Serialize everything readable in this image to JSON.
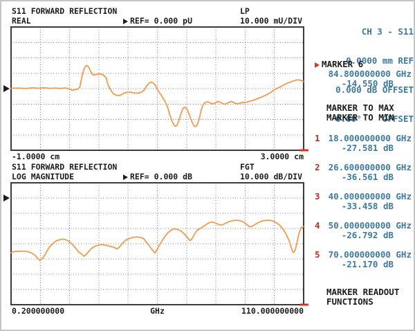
{
  "colors": {
    "blue": "#3e7a9e",
    "red_arrow": "#e2301a",
    "red_number": "#b23327",
    "trace_orange": "#f29a4e",
    "ink": "#1c1c1c",
    "grid": "#7e7e7e",
    "plot_border": "#3a3a3a"
  },
  "plots": [
    {
      "title": "S11 FORWARD REFLECTION",
      "format": "REAL",
      "ref_label": "REF= 0.000 pU",
      "mode": "LP",
      "scale": "10.000 mU/DIV",
      "axis_left": "-1.0000 cm",
      "axis_right": "3.0000 cm"
    },
    {
      "title": "S11 FORWARD REFLECTION",
      "format": "LOG MAGNITUDE",
      "ref_label": "REF= 0.000 dB",
      "mode": "FGT",
      "scale": "10.000 dB/DIV",
      "axis_left": "0.200000000",
      "axis_center": "GHz",
      "axis_right": "110.000000000"
    }
  ],
  "sidebar": {
    "channel": {
      "title": "CH 3 - S11",
      "lines": [
        "0.0000 mm REF",
        "0.000 dB OFFSET",
        "0.00°    OFFSET"
      ]
    },
    "active_marker": {
      "label": "MARKER 6",
      "freq": "84.800000000 GHz",
      "value": "-14.550 dB"
    },
    "menu": [
      "MARKER TO MAX",
      "MARKER TO MIN"
    ],
    "markers": [
      {
        "n": "1",
        "freq": "18.000000000 GHz",
        "value": "-27.581 dB"
      },
      {
        "n": "2",
        "freq": "26.600000000 GHz",
        "value": "-36.561 dB"
      },
      {
        "n": "3",
        "freq": "40.000000000 GHz",
        "value": "-33.458 dB"
      },
      {
        "n": "4",
        "freq": "50.000000000 GHz",
        "value": "-26.792 dB"
      },
      {
        "n": "5",
        "freq": "70.000000000 GHz",
        "value": "-21.170 dB"
      }
    ],
    "footer": [
      "MARKER READOUT",
      "FUNCTIONS"
    ]
  },
  "chart_data": [
    {
      "type": "line",
      "title": "S11 FORWARD REFLECTION - REAL",
      "xlabel": "cm",
      "ylabel": "mU",
      "x_range": [
        -1.0,
        3.0
      ],
      "ref_value": 0.0,
      "units_per_div": 10,
      "divisions_y": 8,
      "divisions_x": 10,
      "ref_div_from_top": 4,
      "grid": "dotted",
      "legend": false,
      "series": [
        {
          "name": "S11 real (mU vs cm)",
          "points": [
            [
              -1.0,
              0.22
            ],
            [
              -0.9,
              0.36
            ],
            [
              -0.8,
              0.09
            ],
            [
              -0.71,
              0.54
            ],
            [
              -0.61,
              0.22
            ],
            [
              -0.55,
              0.63
            ],
            [
              -0.47,
              0.18
            ],
            [
              -0.4,
              0.36
            ],
            [
              -0.33,
              0.09
            ],
            [
              -0.26,
              0.45
            ],
            [
              -0.21,
              -0.09
            ],
            [
              -0.16,
              -1.12
            ],
            [
              -0.12,
              -0.54
            ],
            [
              -0.09,
              -0.36
            ],
            [
              -0.06,
              0.9
            ],
            [
              -0.05,
              3.6
            ],
            [
              -0.03,
              8.09
            ],
            [
              0.0,
              13.26
            ],
            [
              0.03,
              15.06
            ],
            [
              0.05,
              14.61
            ],
            [
              0.07,
              13.03
            ],
            [
              0.09,
              11.01
            ],
            [
              0.11,
              9.44
            ],
            [
              0.13,
              8.76
            ],
            [
              0.15,
              8.99
            ],
            [
              0.18,
              9.35
            ],
            [
              0.21,
              9.53
            ],
            [
              0.24,
              9.21
            ],
            [
              0.27,
              8.54
            ],
            [
              0.3,
              6.97
            ],
            [
              0.32,
              3.15
            ],
            [
              0.36,
              -0.9
            ],
            [
              0.4,
              -3.37
            ],
            [
              0.44,
              -4.27
            ],
            [
              0.48,
              -4.49
            ],
            [
              0.51,
              -3.82
            ],
            [
              0.55,
              -2.83
            ],
            [
              0.59,
              -2.38
            ],
            [
              0.63,
              -2.25
            ],
            [
              0.66,
              -2.7
            ],
            [
              0.7,
              -2.92
            ],
            [
              0.74,
              -2.83
            ],
            [
              0.78,
              -2.38
            ],
            [
              0.82,
              -0.9
            ],
            [
              0.85,
              1.57
            ],
            [
              0.89,
              3.69
            ],
            [
              0.92,
              4.27
            ],
            [
              0.95,
              3.37
            ],
            [
              0.98,
              1.57
            ],
            [
              1.0,
              -0.67
            ],
            [
              1.03,
              -2.7
            ],
            [
              1.06,
              -4.72
            ],
            [
              1.1,
              -7.87
            ],
            [
              1.14,
              -11.91
            ],
            [
              1.17,
              -17.08
            ],
            [
              1.2,
              -21.12
            ],
            [
              1.23,
              -23.82
            ],
            [
              1.25,
              -24.49
            ],
            [
              1.27,
              -23.6
            ],
            [
              1.3,
              -19.78
            ],
            [
              1.33,
              -15.28
            ],
            [
              1.35,
              -12.81
            ],
            [
              1.38,
              -12.13
            ],
            [
              1.41,
              -13.71
            ],
            [
              1.44,
              -17.3
            ],
            [
              1.47,
              -21.35
            ],
            [
              1.5,
              -24.04
            ],
            [
              1.52,
              -24.72
            ],
            [
              1.54,
              -24.04
            ],
            [
              1.56,
              -21.57
            ],
            [
              1.58,
              -17.98
            ],
            [
              1.6,
              -13.93
            ],
            [
              1.62,
              -10.79
            ],
            [
              1.64,
              -9.44
            ],
            [
              1.67,
              -8.67
            ],
            [
              1.69,
              -8.54
            ],
            [
              1.72,
              -9.21
            ],
            [
              1.75,
              -9.89
            ],
            [
              1.78,
              -9.53
            ],
            [
              1.81,
              -8.67
            ],
            [
              1.84,
              -8.45
            ],
            [
              1.87,
              -9.08
            ],
            [
              1.9,
              -9.89
            ],
            [
              1.93,
              -10.11
            ],
            [
              1.96,
              -9.35
            ],
            [
              1.99,
              -8.63
            ],
            [
              2.02,
              -8.45
            ],
            [
              2.04,
              -8.99
            ],
            [
              2.07,
              -9.66
            ],
            [
              2.1,
              -9.89
            ],
            [
              2.13,
              -9.44
            ],
            [
              2.17,
              -8.9
            ],
            [
              2.21,
              -8.9
            ],
            [
              2.24,
              -8.54
            ],
            [
              2.28,
              -8.0
            ],
            [
              2.32,
              -7.42
            ],
            [
              2.36,
              -6.74
            ],
            [
              2.39,
              -6.07
            ],
            [
              2.43,
              -5.39
            ],
            [
              2.47,
              -4.49
            ],
            [
              2.51,
              -3.51
            ],
            [
              2.55,
              -2.47
            ],
            [
              2.58,
              -1.35
            ],
            [
              2.62,
              -0.22
            ],
            [
              2.66,
              0.67
            ],
            [
              2.7,
              1.57
            ],
            [
              2.73,
              2.47
            ],
            [
              2.77,
              3.37
            ],
            [
              2.81,
              4.13
            ],
            [
              2.85,
              4.81
            ],
            [
              2.89,
              5.39
            ],
            [
              2.91,
              5.71
            ],
            [
              2.94,
              5.62
            ],
            [
              2.97,
              5.17
            ],
            [
              3.0,
              4.49
            ]
          ]
        }
      ]
    },
    {
      "type": "line",
      "title": "S11 FORWARD REFLECTION - LOG MAGNITUDE",
      "xlabel": "GHz",
      "ylabel": "dB",
      "x_range": [
        0.2,
        110.0
      ],
      "ref_value": 0.0,
      "units_per_div": 10,
      "divisions_y": 8,
      "divisions_x": 10,
      "ref_div_from_top": 1,
      "grid": "dotted",
      "legend": false,
      "series": [
        {
          "name": "S11 log magnitude (dB vs GHz)",
          "points": [
            [
              0.2,
              -35.9
            ],
            [
              1.2,
              -35.2
            ],
            [
              2.8,
              -34.9
            ],
            [
              4.4,
              -34.8
            ],
            [
              5.9,
              -35.0
            ],
            [
              7.5,
              -35.7
            ],
            [
              9.0,
              -37.3
            ],
            [
              10.1,
              -39.3
            ],
            [
              11.1,
              -41.1
            ],
            [
              12.1,
              -39.5
            ],
            [
              13.2,
              -36.4
            ],
            [
              14.2,
              -33.2
            ],
            [
              15.5,
              -30.5
            ],
            [
              16.8,
              -28.4
            ],
            [
              18.0,
              -27.58
            ],
            [
              19.4,
              -26.9
            ],
            [
              20.7,
              -27.3
            ],
            [
              22.0,
              -28.6
            ],
            [
              23.3,
              -30.7
            ],
            [
              24.6,
              -33.2
            ],
            [
              25.6,
              -35.5
            ],
            [
              26.6,
              -36.56
            ],
            [
              27.5,
              -38.2
            ],
            [
              28.2,
              -37.3
            ],
            [
              29.3,
              -35.2
            ],
            [
              30.3,
              -33.2
            ],
            [
              31.6,
              -31.7
            ],
            [
              32.9,
              -31.0
            ],
            [
              34.2,
              -30.6
            ],
            [
              35.5,
              -30.9
            ],
            [
              37.1,
              -31.6
            ],
            [
              38.6,
              -32.2
            ],
            [
              40.0,
              -33.46
            ],
            [
              41.0,
              -32.0
            ],
            [
              41.7,
              -30.2
            ],
            [
              43.3,
              -27.5
            ],
            [
              44.9,
              -26.4
            ],
            [
              46.4,
              -25.7
            ],
            [
              47.7,
              -25.5
            ],
            [
              49.3,
              -26.2
            ],
            [
              50.0,
              -26.79
            ],
            [
              50.6,
              -28.2
            ],
            [
              51.9,
              -30.9
            ],
            [
              53.2,
              -34.1
            ],
            [
              54.2,
              -36.1
            ],
            [
              55.2,
              -33.2
            ],
            [
              56.5,
              -29.1
            ],
            [
              57.8,
              -25.5
            ],
            [
              59.1,
              -22.7
            ],
            [
              60.4,
              -20.9
            ],
            [
              61.5,
              -20.2
            ],
            [
              62.8,
              -20.7
            ],
            [
              64.1,
              -21.8
            ],
            [
              65.4,
              -23.9
            ],
            [
              66.4,
              -25.9
            ],
            [
              67.4,
              -28.0
            ],
            [
              68.2,
              -26.5
            ],
            [
              69.0,
              -23.8
            ],
            [
              70.0,
              -21.17
            ],
            [
              71.2,
              -19.9
            ],
            [
              72.4,
              -18.6
            ],
            [
              73.6,
              -17.2
            ],
            [
              74.6,
              -16.1
            ],
            [
              75.5,
              -15.7
            ],
            [
              76.5,
              -16.1
            ],
            [
              78.6,
              -17.7
            ],
            [
              79.6,
              -17.5
            ],
            [
              80.9,
              -16.4
            ],
            [
              82.2,
              -15.3
            ],
            [
              83.5,
              -14.8
            ],
            [
              84.8,
              -14.55
            ],
            [
              86.1,
              -14.9
            ],
            [
              87.4,
              -15.6
            ],
            [
              88.7,
              -17.4
            ],
            [
              89.7,
              -18.9
            ],
            [
              90.8,
              -18.4
            ],
            [
              91.8,
              -17.3
            ],
            [
              93.1,
              -16.0
            ],
            [
              94.4,
              -15.1
            ],
            [
              96.0,
              -14.6
            ],
            [
              97.3,
              -14.7
            ],
            [
              98.6,
              -15.2
            ],
            [
              99.9,
              -16.4
            ],
            [
              101.2,
              -18.2
            ],
            [
              102.5,
              -20.9
            ],
            [
              103.5,
              -24.1
            ],
            [
              104.6,
              -28.2
            ],
            [
              105.3,
              -32.3
            ],
            [
              105.9,
              -35.4
            ],
            [
              106.4,
              -35.7
            ],
            [
              106.9,
              -33.6
            ],
            [
              107.4,
              -30.0
            ],
            [
              107.9,
              -25.9
            ],
            [
              108.4,
              -22.3
            ],
            [
              109.0,
              -19.5
            ],
            [
              110.0,
              -18.6
            ]
          ]
        }
      ]
    }
  ]
}
